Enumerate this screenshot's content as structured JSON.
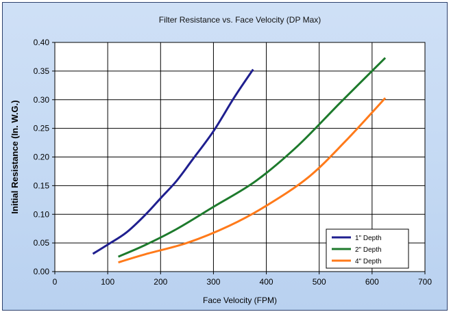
{
  "chart_data": {
    "type": "line",
    "title": "Filter Resistance vs. Face Velocity (DP Max)",
    "xlabel": "Face Velocity (FPM)",
    "ylabel": "Initial Resistance (In. W.G.)",
    "xlim": [
      0,
      700
    ],
    "ylim": [
      0,
      0.4
    ],
    "xticks": [
      "0",
      "100",
      "200",
      "300",
      "400",
      "500",
      "600",
      "700"
    ],
    "yticks": [
      "0.00",
      "0.05",
      "0.10",
      "0.15",
      "0.20",
      "0.25",
      "0.30",
      "0.35",
      "0.40"
    ],
    "grid": true,
    "legend_position": "bottom-right",
    "series": [
      {
        "name": "1\" Depth",
        "color": "#1f1f8f",
        "x": [
          72,
          100,
          135,
          170,
          200,
          230,
          260,
          300,
          340,
          375
        ],
        "y": [
          0.031,
          0.047,
          0.068,
          0.098,
          0.128,
          0.158,
          0.195,
          0.245,
          0.305,
          0.353
        ]
      },
      {
        "name": "2\" Depth",
        "color": "#1d7a2c",
        "x": [
          120,
          170,
          230,
          300,
          380,
          460,
          540,
          625
        ],
        "y": [
          0.026,
          0.046,
          0.074,
          0.113,
          0.158,
          0.22,
          0.295,
          0.373
        ]
      },
      {
        "name": "4\" Depth",
        "color": "#ff7a1a",
        "x": [
          120,
          170,
          250,
          330,
          400,
          480,
          550,
          625
        ],
        "y": [
          0.016,
          0.03,
          0.05,
          0.08,
          0.115,
          0.165,
          0.228,
          0.303
        ]
      }
    ]
  }
}
